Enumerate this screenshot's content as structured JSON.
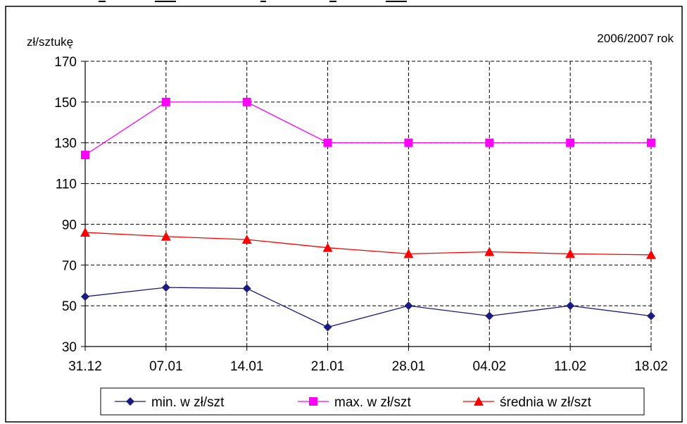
{
  "chart_data": {
    "type": "line",
    "title": "",
    "corner_label": "2006/2007 rok",
    "ylabel": "zł/sztukę",
    "xlabel": "",
    "categories": [
      "31.12",
      "07.01",
      "14.01",
      "21.01",
      "28.01",
      "04.02",
      "11.02",
      "18.02"
    ],
    "ylim": [
      30,
      170
    ],
    "yticks": [
      30,
      50,
      70,
      90,
      110,
      130,
      150,
      170
    ],
    "grid": true,
    "legend_position": "bottom",
    "series": [
      {
        "name": "min. w zł/szt",
        "marker": "diamond",
        "color": "#1a1a80",
        "values": [
          54.5,
          59,
          58.5,
          39.5,
          50,
          45,
          50,
          45
        ]
      },
      {
        "name": "max. w zł/szt",
        "marker": "square",
        "color": "#ff00ff",
        "values": [
          124,
          150,
          150,
          130,
          130,
          130,
          130,
          130
        ]
      },
      {
        "name": "średnia w zł/szt",
        "marker": "triangle",
        "color": "#ff0000",
        "values": [
          86,
          84,
          82.5,
          78.5,
          75.5,
          76.5,
          75.5,
          75
        ]
      }
    ]
  }
}
